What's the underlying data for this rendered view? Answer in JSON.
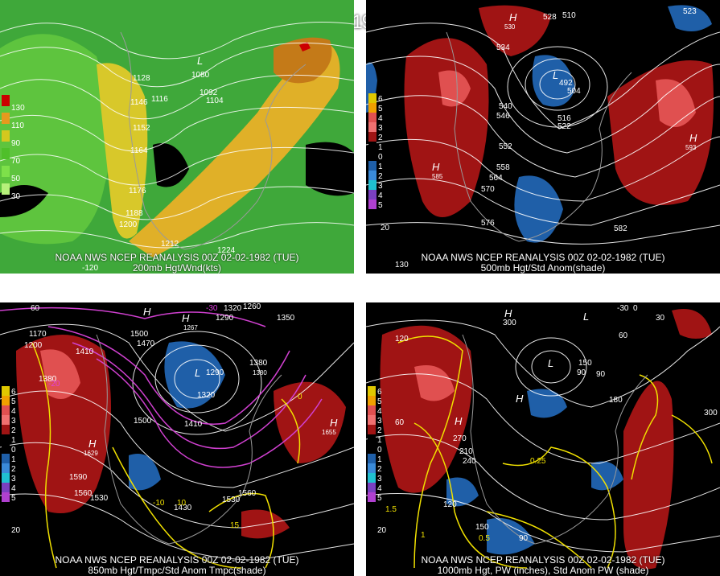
{
  "banner": "00Z 02-02-1982 (TUE)",
  "panels": [
    {
      "id": "p1",
      "line1": "NOAA NWS NCEP REANALYSIS 00Z 02-02-1982 (TUE)",
      "line2": "200mb Hgt/Wnd(kts)",
      "legend": [
        "130",
        "110",
        "90",
        "70",
        "50",
        "30"
      ],
      "legend_colors": [
        "#cc0000",
        "#e69a1e",
        "#d4c81e",
        "#4fbf2a",
        "#7ee04a",
        "#b6f07a"
      ],
      "labels": [
        "1128",
        "1146",
        "1116",
        "1092",
        "1104",
        "1080",
        "1152",
        "1164",
        "1176",
        "1188",
        "1200",
        "1212",
        "1224",
        "L"
      ],
      "ticks": [
        "-120"
      ]
    },
    {
      "id": "p2",
      "line1": "NOAA NWS NCEP REANALYSIS 00Z 02-02-1982 (TUE)",
      "line2": "500mb Hgt/Std Anom(shade)",
      "legend": [
        "6",
        "5",
        "4",
        "3",
        "2",
        "1",
        "0",
        "1",
        "2",
        "3",
        "4",
        "5"
      ],
      "labels": [
        "534",
        "540",
        "546",
        "552",
        "558",
        "564",
        "570",
        "576",
        "582",
        "516",
        "522",
        "510",
        "528",
        "492",
        "504",
        "H",
        "L",
        "H",
        "H",
        "585",
        "530",
        "593",
        "523"
      ],
      "ticks": [
        "20",
        "130"
      ]
    },
    {
      "id": "p3",
      "line1": "NOAA NWS NCEP REANALYSIS 00Z 02-02-1982 (TUE)",
      "line2": "850mb Hgt/Tmpc/Std Anom Tmpc(shade)",
      "legend": [
        "6",
        "5",
        "4",
        "3",
        "2",
        "1",
        "0",
        "1",
        "2",
        "3",
        "4",
        "5"
      ],
      "labels": [
        "1170",
        "1200",
        "1410",
        "1380",
        "1500",
        "1470",
        "1320",
        "1290",
        "1260",
        "1350",
        "1380",
        "1320",
        "1410",
        "1500",
        "1590",
        "1560",
        "1530",
        "1560",
        "1530",
        "1430",
        "1290",
        "1267",
        "1380",
        "H",
        "H",
        "L",
        "H",
        "H",
        "1629",
        "1655",
        "-30",
        "-20",
        "-10",
        "0",
        "10",
        "15"
      ],
      "ticks": [
        "60",
        "20"
      ]
    },
    {
      "id": "p4",
      "line1": "NOAA NWS NCEP REANALYSIS 00Z 02-02-1982 (TUE)",
      "line2": "1000mb Hgt, PW (inches), Std Anom PW (shade)",
      "legend": [
        "6",
        "5",
        "4",
        "3",
        "2",
        "1",
        "0",
        "1",
        "2",
        "3",
        "4",
        "5"
      ],
      "labels": [
        "120",
        "300",
        "180",
        "210",
        "240",
        "270",
        "90",
        "60",
        "150",
        "90",
        "120",
        "300",
        "150",
        "0.25",
        "0.5",
        "1",
        "1.5",
        "H",
        "H",
        "L",
        "L",
        "H",
        "-30",
        "0",
        "30",
        "60",
        "90"
      ],
      "ticks": [
        "20"
      ]
    }
  ]
}
